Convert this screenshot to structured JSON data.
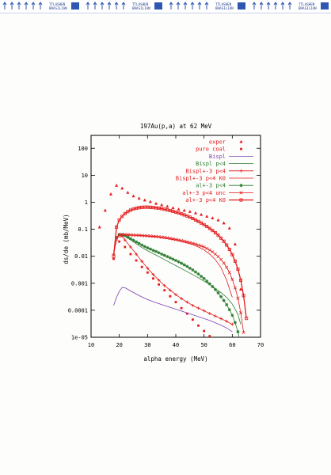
{
  "page": {
    "header_strip_label": "TTLASHEN BRASILIAN"
  },
  "colors": {
    "frame": "#000000",
    "exp_red": "#e41a1c",
    "bispl": "#7b3fb0",
    "bispl_pk4": "#2e7d32",
    "paper": "#fdfdfb",
    "strip_arrows": "#2f56b0"
  },
  "chart_data": {
    "type": "line",
    "title": "197Au(p,a) at 62 MeV",
    "xlabel": "alpha energy (MeV)",
    "ylabel": "ds/de (mb/MeV)",
    "xlim": [
      10,
      70
    ],
    "ylim": [
      1e-05,
      300
    ],
    "yscale": "log",
    "grid": false,
    "legend_position": "top-right",
    "x_ticks": [
      10,
      20,
      30,
      40,
      50,
      60,
      70
    ],
    "y_ticks": [
      {
        "value": 1e-05,
        "label": "1e-05"
      },
      {
        "value": 0.0001,
        "label": "0.0001"
      },
      {
        "value": 0.001,
        "label": "0.001"
      },
      {
        "value": 0.01,
        "label": "0.01"
      },
      {
        "value": 0.1,
        "label": "0.1"
      },
      {
        "value": 1,
        "label": "1"
      },
      {
        "value": 10,
        "label": "10"
      },
      {
        "value": 100,
        "label": "100"
      }
    ],
    "series": [
      {
        "name": "exper",
        "color": "#e41a1c",
        "style": "triangles",
        "x": [
          13,
          15,
          17,
          19,
          21,
          23,
          25,
          27,
          29,
          31,
          33,
          35,
          37,
          39,
          41,
          43,
          45,
          47,
          49,
          51,
          53,
          55,
          57,
          59,
          61,
          63
        ],
        "y": [
          0.12,
          0.5,
          2.0,
          4.2,
          3.3,
          2.3,
          1.7,
          1.4,
          1.2,
          1.05,
          0.9,
          0.8,
          0.7,
          0.62,
          0.55,
          0.5,
          0.45,
          0.4,
          0.35,
          0.3,
          0.26,
          0.22,
          0.17,
          0.11,
          0.028,
          0.0006
        ]
      },
      {
        "name": "pure coal",
        "color": "#e41a1c",
        "style": "dots",
        "x": [
          18,
          20,
          22,
          24,
          26,
          28,
          30,
          32,
          34,
          36,
          38,
          40,
          42,
          44,
          46,
          48,
          50,
          52,
          54,
          56
        ],
        "y": [
          0.008,
          0.035,
          0.022,
          0.012,
          0.007,
          0.004,
          0.0025,
          0.0015,
          0.0009,
          0.00055,
          0.00033,
          0.0002,
          0.00012,
          7.5e-05,
          4.5e-05,
          2.7e-05,
          1.7e-05,
          1.1e-05,
          7e-06,
          4.5e-06
        ]
      },
      {
        "name": "Bispl",
        "color": "#7b3fb0",
        "style": "line",
        "x": [
          18,
          19,
          20,
          21,
          22,
          23,
          24,
          26,
          28,
          30,
          33,
          36,
          40,
          44,
          48,
          52,
          56,
          58,
          60
        ],
        "y": [
          0.00015,
          0.0003,
          0.0005,
          0.0007,
          0.00068,
          0.0006,
          0.00052,
          0.0004,
          0.00031,
          0.00025,
          0.00019,
          0.00015,
          0.00011,
          8e-05,
          5.8e-05,
          4.2e-05,
          2.8e-05,
          2.2e-05,
          1.6e-05
        ]
      },
      {
        "name": "Bispl p<4",
        "color": "#2e7d32",
        "style": "line",
        "x": [
          18,
          19,
          20,
          21,
          22,
          24,
          26,
          28,
          30,
          33,
          36,
          40,
          44,
          48,
          52,
          56,
          58,
          60,
          62,
          63
        ],
        "y": [
          0.015,
          0.04,
          0.06,
          0.065,
          0.055,
          0.04,
          0.029,
          0.021,
          0.016,
          0.011,
          0.0075,
          0.0045,
          0.0027,
          0.0016,
          0.0009,
          0.00045,
          0.0003,
          0.00017,
          7e-05,
          3e-05
        ]
      },
      {
        "name": "Bispl+-3 p<4",
        "color": "#e41a1c",
        "style": "plus",
        "x": [
          18,
          19,
          20,
          21,
          22,
          24,
          26,
          28,
          30,
          32,
          34,
          36,
          38,
          40,
          42,
          44,
          46,
          48,
          50,
          52,
          54,
          56,
          58,
          60
        ],
        "y": [
          0.012,
          0.04,
          0.062,
          0.056,
          0.04,
          0.022,
          0.012,
          0.0065,
          0.0036,
          0.0021,
          0.0013,
          0.00082,
          0.00055,
          0.00038,
          0.00027,
          0.0002,
          0.00015,
          0.00012,
          9.5e-05,
          7.6e-05,
          6.1e-05,
          4.9e-05,
          3.9e-05,
          3e-05
        ]
      },
      {
        "name": "Bispl+-3 p<4 K0",
        "color": "#e41a1c",
        "style": "line",
        "x": [
          20,
          22,
          24,
          26,
          28,
          30,
          32,
          34,
          36,
          38,
          40,
          42,
          44,
          46,
          48,
          50,
          52,
          54,
          56,
          58,
          60
        ],
        "y": [
          0.05,
          0.06,
          0.06,
          0.059,
          0.057,
          0.055,
          0.052,
          0.049,
          0.046,
          0.043,
          0.039,
          0.035,
          0.031,
          0.027,
          0.022,
          0.017,
          0.012,
          0.0075,
          0.0038,
          0.0013,
          0.0003
        ]
      },
      {
        "name": "al+-3 p<4",
        "color": "#2e7d32",
        "style": "asterisk",
        "x": [
          19,
          20,
          21,
          22,
          23,
          24,
          25,
          26,
          27,
          28,
          29,
          30,
          31,
          32,
          33,
          34,
          35,
          36,
          37,
          38,
          39,
          40,
          41,
          42,
          43,
          44,
          45,
          46,
          47,
          48,
          49,
          50,
          51,
          52,
          53,
          54,
          55,
          56,
          57,
          58,
          59,
          60,
          61,
          62,
          63
        ],
        "y": [
          0.05,
          0.064,
          0.063,
          0.058,
          0.051,
          0.045,
          0.039,
          0.034,
          0.03,
          0.026,
          0.023,
          0.0205,
          0.0185,
          0.0165,
          0.015,
          0.0135,
          0.012,
          0.0108,
          0.0097,
          0.0087,
          0.0078,
          0.007,
          0.0062,
          0.0055,
          0.0048,
          0.0042,
          0.0036,
          0.0031,
          0.0026,
          0.0022,
          0.0018,
          0.0015,
          0.0012,
          0.00095,
          0.00075,
          0.00058,
          0.00044,
          0.00032,
          0.00023,
          0.00016,
          0.000105,
          6.5e-05,
          3.5e-05,
          1.6e-05,
          5e-06
        ]
      },
      {
        "name": "al+-3 p<4 unc",
        "color": "#e41a1c",
        "style": "cross",
        "x": [
          19,
          20,
          21,
          22,
          23,
          24,
          25,
          26,
          27,
          28,
          29,
          30,
          31,
          32,
          33,
          34,
          35,
          36,
          37,
          38,
          39,
          40,
          41,
          42,
          43,
          44,
          45,
          46,
          47,
          48,
          49,
          50,
          51,
          52,
          53,
          54,
          55,
          56,
          57,
          58,
          59,
          60,
          61,
          62,
          63,
          64
        ],
        "y": [
          0.05,
          0.062,
          0.064,
          0.064,
          0.063,
          0.062,
          0.061,
          0.0605,
          0.06,
          0.059,
          0.058,
          0.057,
          0.056,
          0.055,
          0.054,
          0.053,
          0.051,
          0.05,
          0.048,
          0.046,
          0.044,
          0.042,
          0.04,
          0.038,
          0.036,
          0.034,
          0.032,
          0.03,
          0.028,
          0.026,
          0.024,
          0.022,
          0.0195,
          0.017,
          0.0145,
          0.012,
          0.0098,
          0.0076,
          0.0056,
          0.0039,
          0.0025,
          0.0014,
          0.00068,
          0.00028,
          8e-05,
          1.5e-05
        ]
      },
      {
        "name": "al+-3 p<4 K0",
        "color": "#e41a1c",
        "style": "square",
        "x": [
          18,
          19,
          20,
          21,
          22,
          23,
          24,
          25,
          26,
          27,
          28,
          29,
          30,
          31,
          32,
          33,
          34,
          35,
          36,
          37,
          38,
          39,
          40,
          41,
          42,
          43,
          44,
          45,
          46,
          47,
          48,
          49,
          50,
          51,
          52,
          53,
          54,
          55,
          56,
          57,
          58,
          59,
          60,
          61,
          62,
          63,
          64,
          65
        ],
        "y": [
          0.01,
          0.12,
          0.22,
          0.3,
          0.38,
          0.45,
          0.51,
          0.56,
          0.6,
          0.63,
          0.65,
          0.66,
          0.66,
          0.65,
          0.64,
          0.62,
          0.6,
          0.58,
          0.55,
          0.52,
          0.49,
          0.46,
          0.43,
          0.4,
          0.37,
          0.34,
          0.31,
          0.28,
          0.25,
          0.22,
          0.195,
          0.17,
          0.148,
          0.127,
          0.107,
          0.09,
          0.074,
          0.06,
          0.047,
          0.036,
          0.026,
          0.018,
          0.0115,
          0.0066,
          0.0033,
          0.0013,
          0.00035,
          5e-05
        ]
      }
    ]
  }
}
